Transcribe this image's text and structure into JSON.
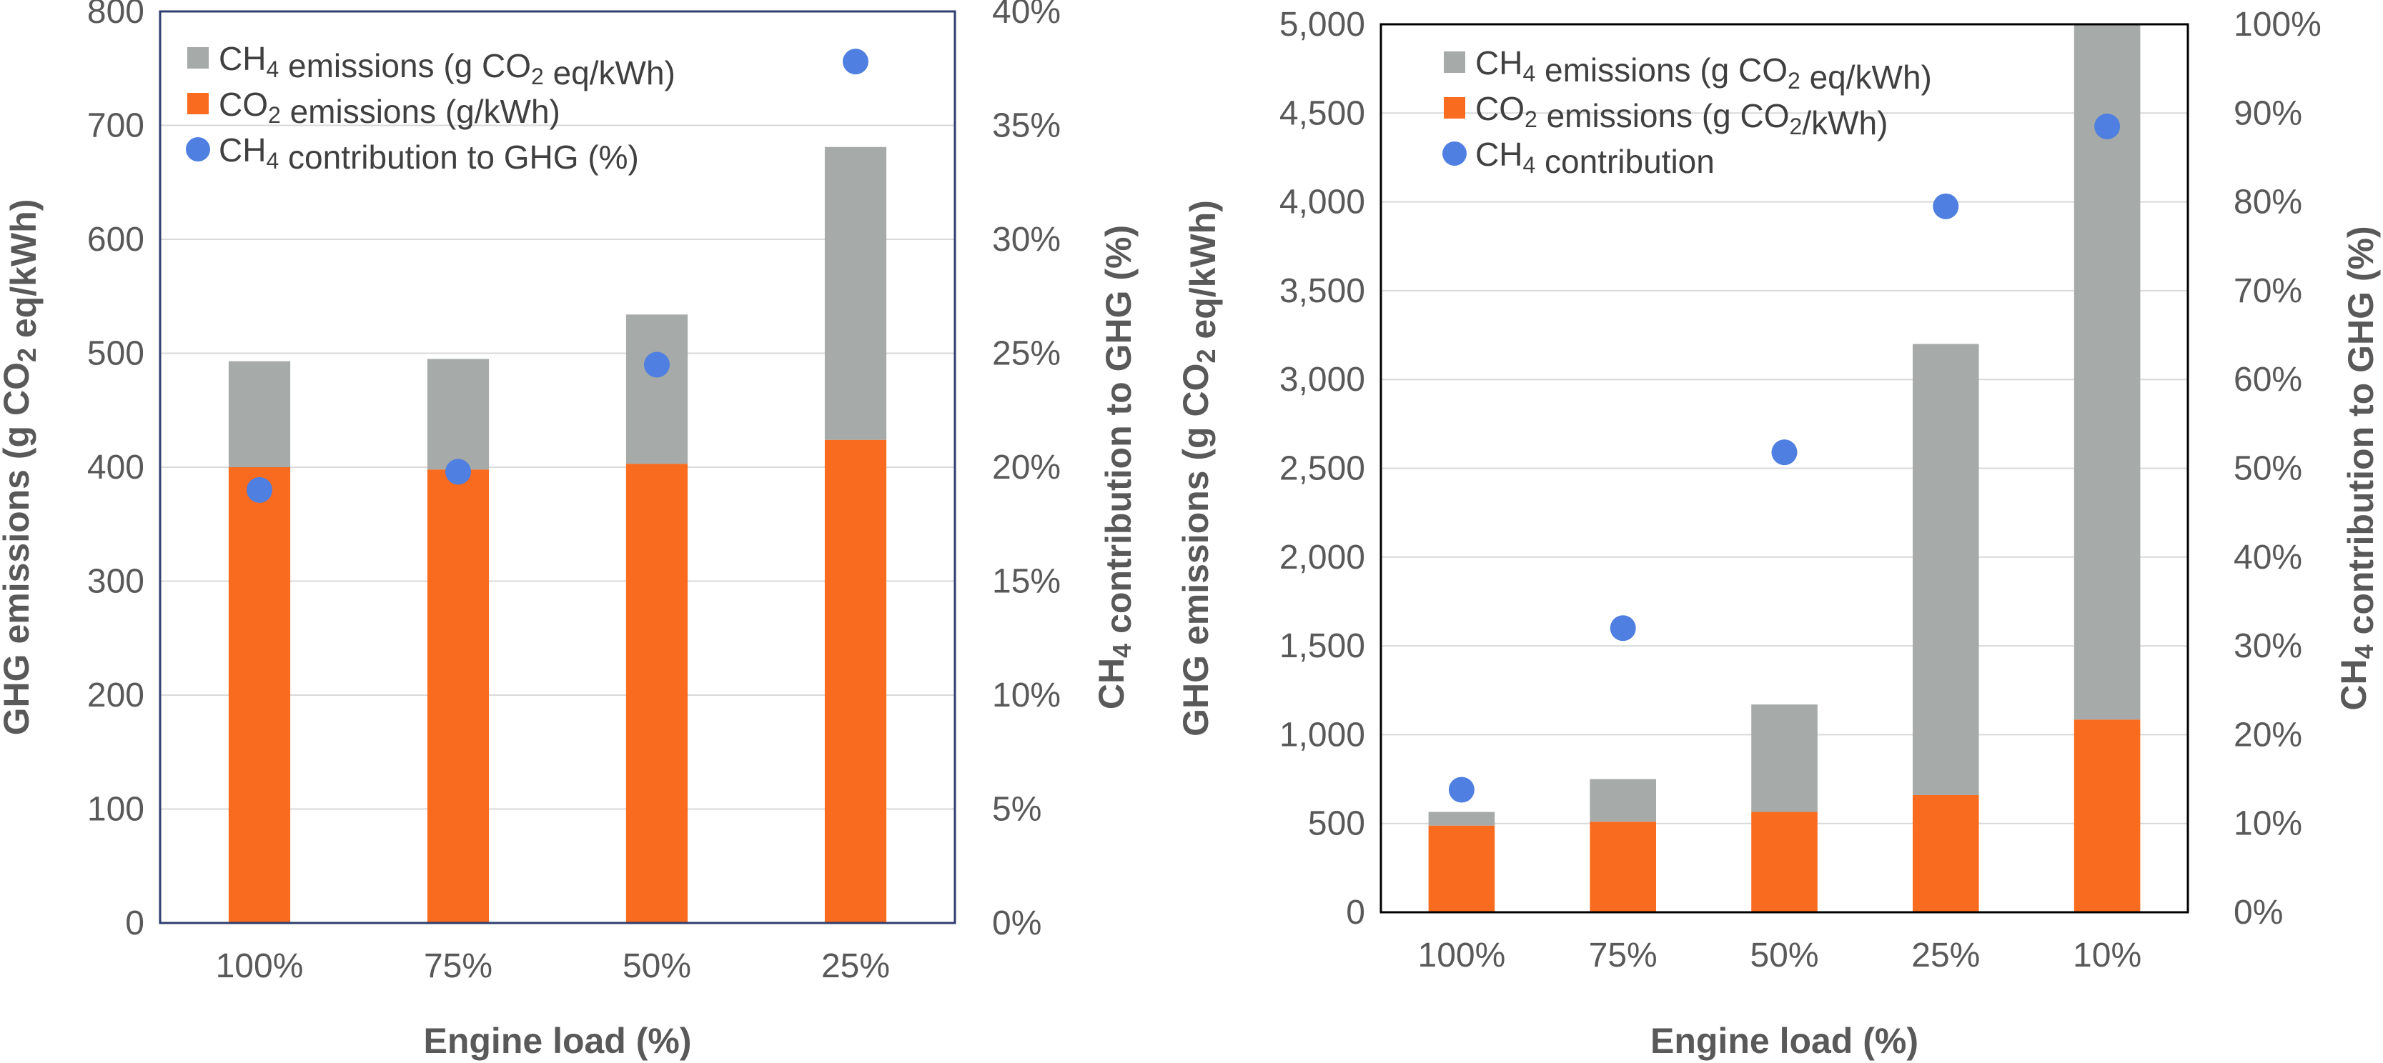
{
  "colors": {
    "co2": "#f96b1e",
    "ch4": "#a6aaa8",
    "point": "#4f7fe0",
    "frame_left": "#2f3e6e",
    "frame_right": "#000000"
  },
  "chart_data": [
    {
      "type": "bar",
      "stacked": true,
      "categories": [
        "100%",
        "75%",
        "50%",
        "25%"
      ],
      "tick_labels": {
        "y_left": [
          "0",
          "100",
          "200",
          "300",
          "400",
          "500",
          "600",
          "700",
          "800"
        ],
        "y_right": [
          "0%",
          "5%",
          "10%",
          "15%",
          "20%",
          "25%",
          "30%",
          "35%",
          "40%"
        ]
      },
      "series": [
        {
          "name": "CO2 emissions (g/kWh)",
          "kind": "bar",
          "values": [
            400,
            398,
            403,
            424
          ]
        },
        {
          "name": "CH4 emissions (g CO2 eq/kWh)",
          "kind": "bar",
          "values": [
            93,
            97,
            131,
            257
          ]
        },
        {
          "name": "CH4 contribution to GHG (%)",
          "kind": "scatter",
          "axis": "right",
          "values": [
            19.0,
            19.8,
            24.5,
            37.8
          ]
        }
      ],
      "ylim": [
        0,
        800
      ],
      "ylim_right": [
        0,
        40
      ],
      "xlabel": "Engine load (%)",
      "ylabel": "GHG emissions (g CO2 eq/kWh)",
      "ylabel_right": "CH4 contribution to GHG (%)",
      "legend": [
        "CH4 emissions (g CO2 eq/kWh)",
        "CO2 emissions (g/kWh)",
        "CH4 contribution to GHG (%)"
      ],
      "legend_position": "top-left"
    },
    {
      "type": "bar",
      "stacked": true,
      "categories": [
        "100%",
        "75%",
        "50%",
        "25%",
        "10%"
      ],
      "tick_labels": {
        "y_left": [
          "0",
          "500",
          "1,000",
          "1,500",
          "2,000",
          "2,500",
          "3,000",
          "3,500",
          "4,000",
          "4,500",
          "5,000"
        ],
        "y_right": [
          "0%",
          "10%",
          "20%",
          "30%",
          "40%",
          "50%",
          "60%",
          "70%",
          "80%",
          "90%",
          "100%"
        ]
      },
      "series": [
        {
          "name": "CO2 emissions (g CO2/kWh)",
          "kind": "bar",
          "values": [
            488,
            510,
            565,
            660,
            1085
          ]
        },
        {
          "name": "CH4 emissions (g CO2 eq/kWh)",
          "kind": "bar",
          "values": [
            77,
            240,
            605,
            2540,
            3915
          ]
        },
        {
          "name": "CH4 contribution",
          "kind": "scatter",
          "axis": "right",
          "values": [
            13.8,
            32.0,
            51.8,
            79.5,
            88.5
          ]
        }
      ],
      "ylim": [
        0,
        5000
      ],
      "ylim_right": [
        0,
        100
      ],
      "xlabel": "Engine load (%)",
      "ylabel": "GHG emissions (g CO2 eq/kWh)",
      "ylabel_right": "CH4 contribution to GHG (%)",
      "legend": [
        "CH4 emissions (g CO2 eq/kWh)",
        "CO2 emissions (g CO2/kWh)",
        "CH4 contribution"
      ],
      "legend_position": "top-left"
    }
  ]
}
